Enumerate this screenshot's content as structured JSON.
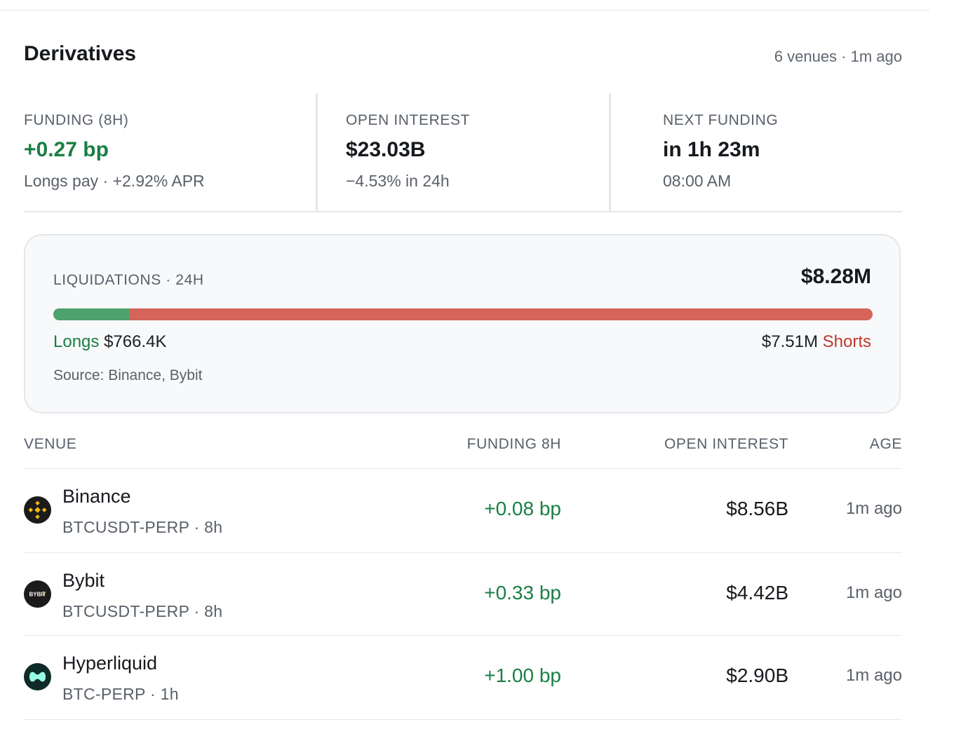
{
  "header": {
    "title": "Derivatives",
    "meta": "6 venues · 1m ago"
  },
  "stats": {
    "funding": {
      "label": "FUNDING (8H)",
      "value": "+0.27 bp",
      "sub": "Longs pay · +2.92% APR"
    },
    "open_interest": {
      "label": "OPEN INTEREST",
      "value": "$23.03B",
      "sub": "−4.53% in 24h"
    },
    "next_funding": {
      "label": "NEXT FUNDING",
      "value": "in 1h 23m",
      "sub": "08:00 AM"
    }
  },
  "liquidations": {
    "label": "LIQUIDATIONS · 24H",
    "total": "$8.28M",
    "longs_label": "Longs",
    "longs_value": "$766.4K",
    "shorts_value": "$7.51M",
    "shorts_label": "Shorts",
    "longs_share": 0.0926,
    "source": "Source: Binance, Bybit",
    "colors": {
      "longs": "#4ea26e",
      "shorts": "#d5645a"
    }
  },
  "table": {
    "headers": {
      "venue": "VENUE",
      "funding": "FUNDING 8H",
      "open_interest": "OPEN INTEREST",
      "age": "AGE"
    },
    "rows": [
      {
        "name": "Binance",
        "pair": "BTCUSDT-PERP · 8h",
        "funding": "+0.08 bp",
        "open_interest": "$8.56B",
        "age": "1m ago",
        "icon": "binance-logo-icon"
      },
      {
        "name": "Bybit",
        "pair": "BTCUSDT-PERP · 8h",
        "funding": "+0.33 bp",
        "open_interest": "$4.42B",
        "age": "1m ago",
        "icon": "bybit-logo-icon",
        "logo_text": "BYBIT"
      },
      {
        "name": "Hyperliquid",
        "pair": "BTC-PERP · 1h",
        "funding": "+1.00 bp",
        "open_interest": "$2.90B",
        "age": "1m ago",
        "icon": "hyperliquid-logo-icon"
      }
    ]
  }
}
